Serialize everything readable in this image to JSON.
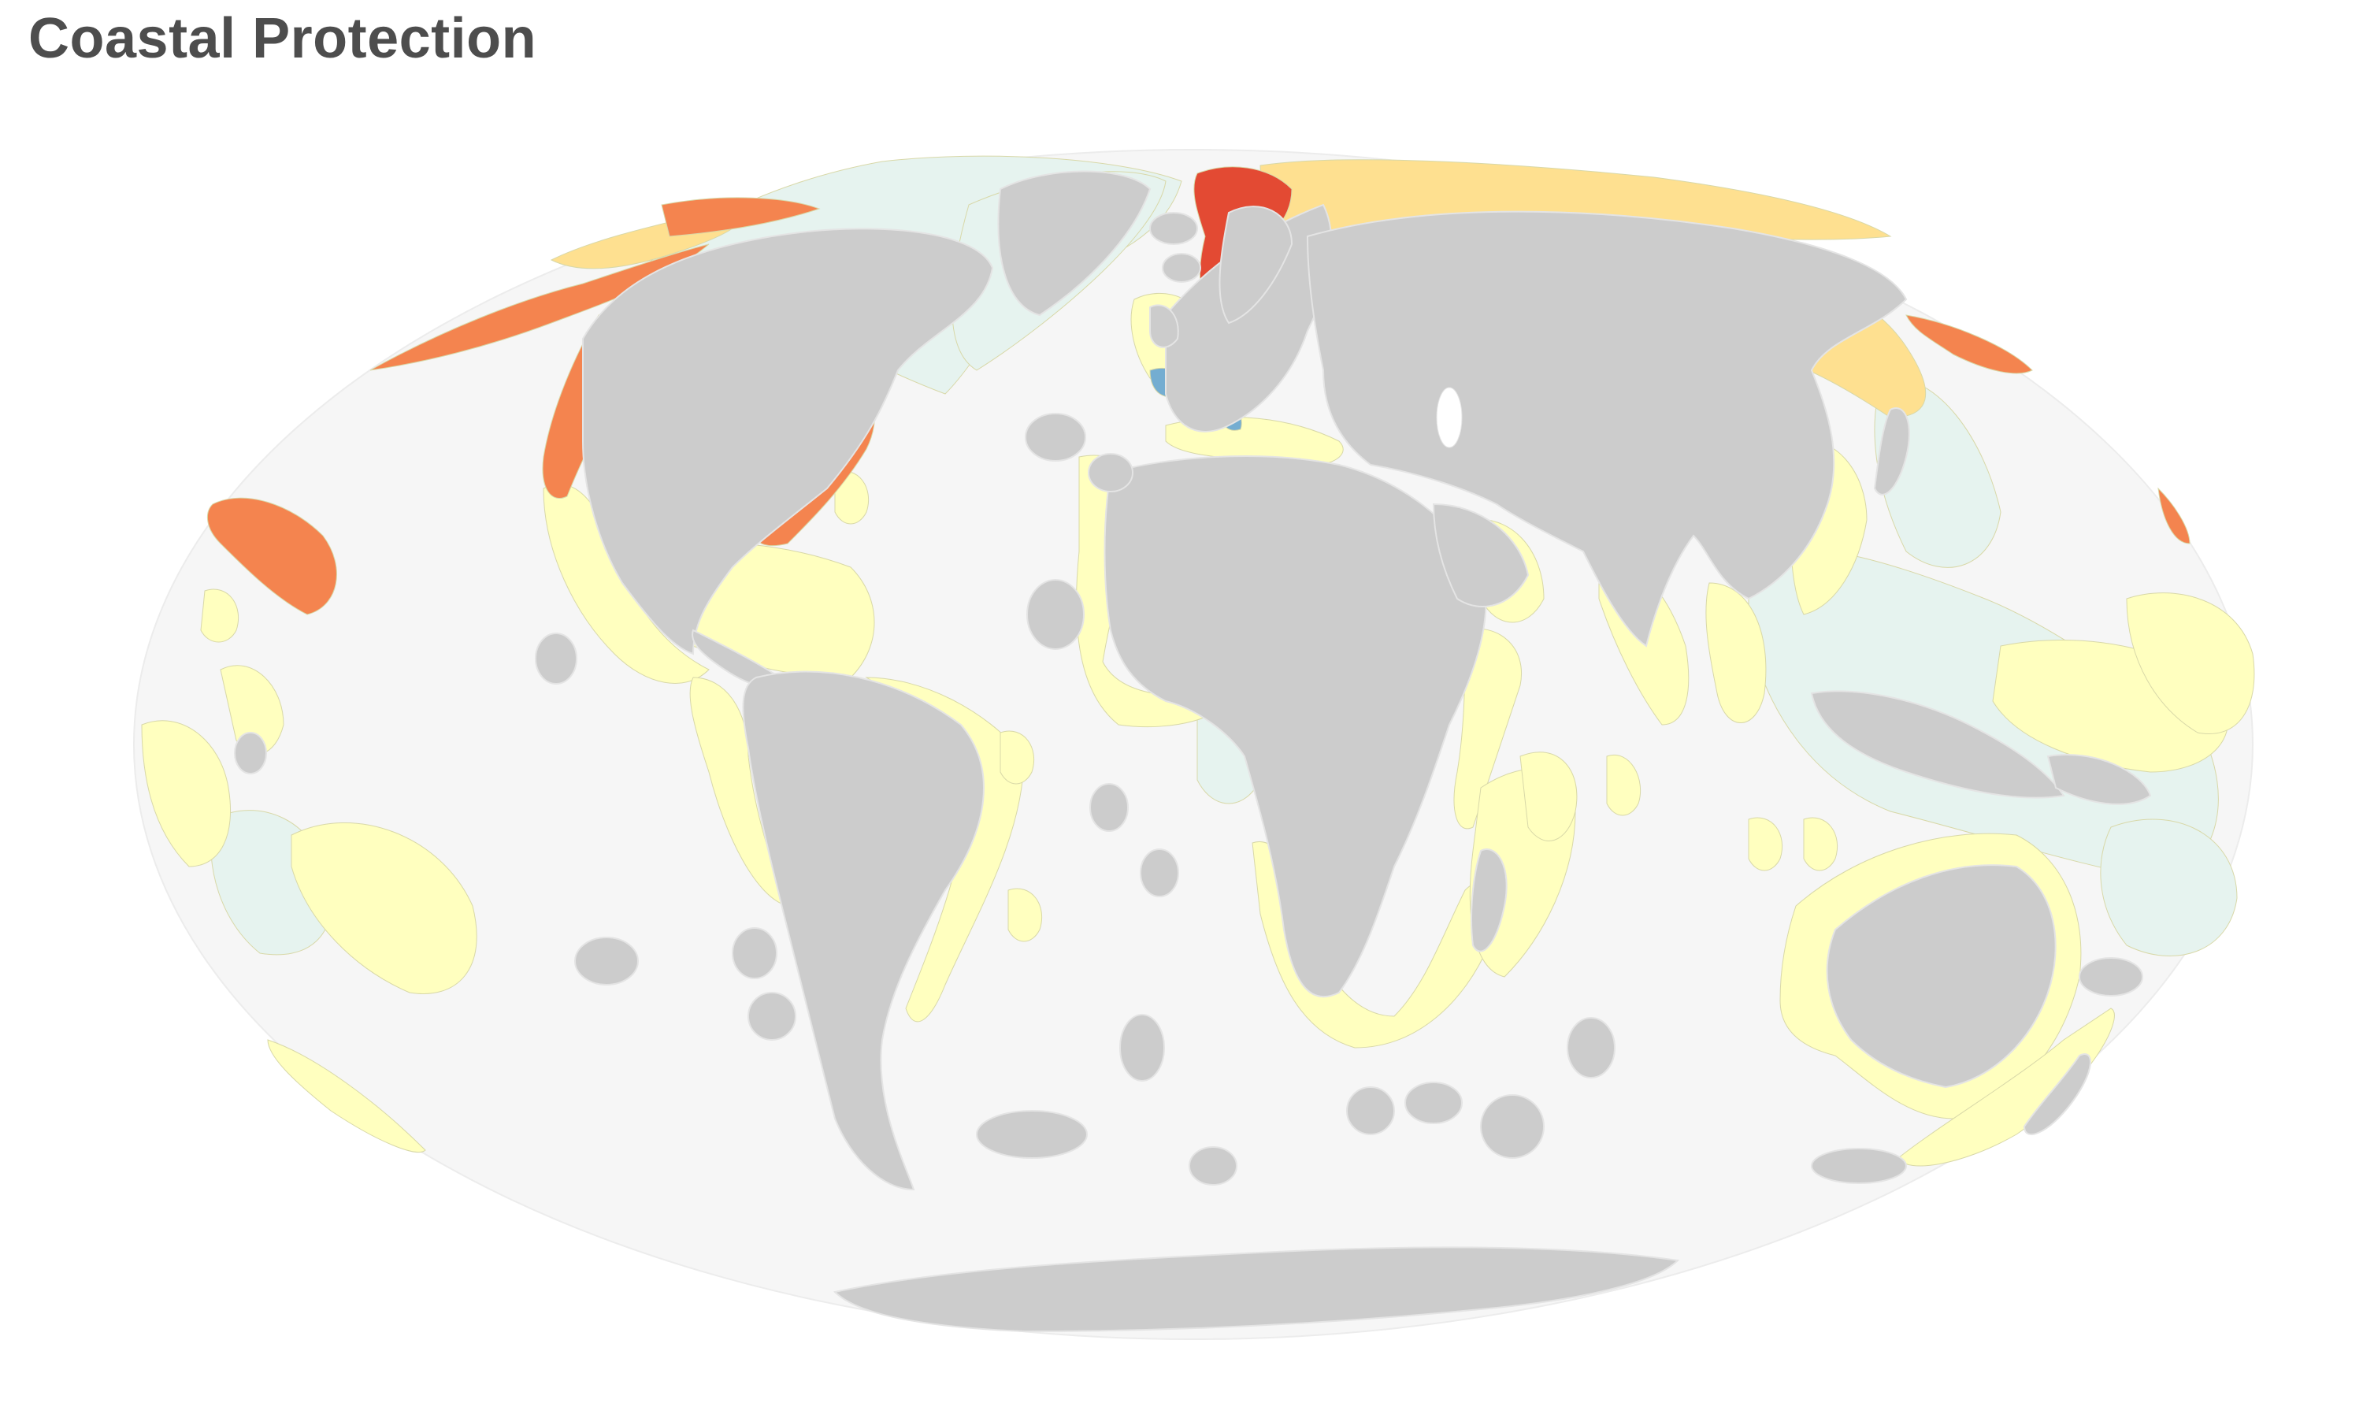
{
  "title": "Coastal Protection",
  "colors": {
    "ocean": "#f6f6f6",
    "land": "#cccccc",
    "land_border": "#e4e4e4",
    "score_very_high": "#e34a33",
    "score_high": "#f4844f",
    "score_medium_high": "#fee090",
    "score_medium": "#ffffbf",
    "score_low": "#e6f3ef",
    "score_very_low": "#74add1",
    "no_data": "#cccccc"
  }
}
